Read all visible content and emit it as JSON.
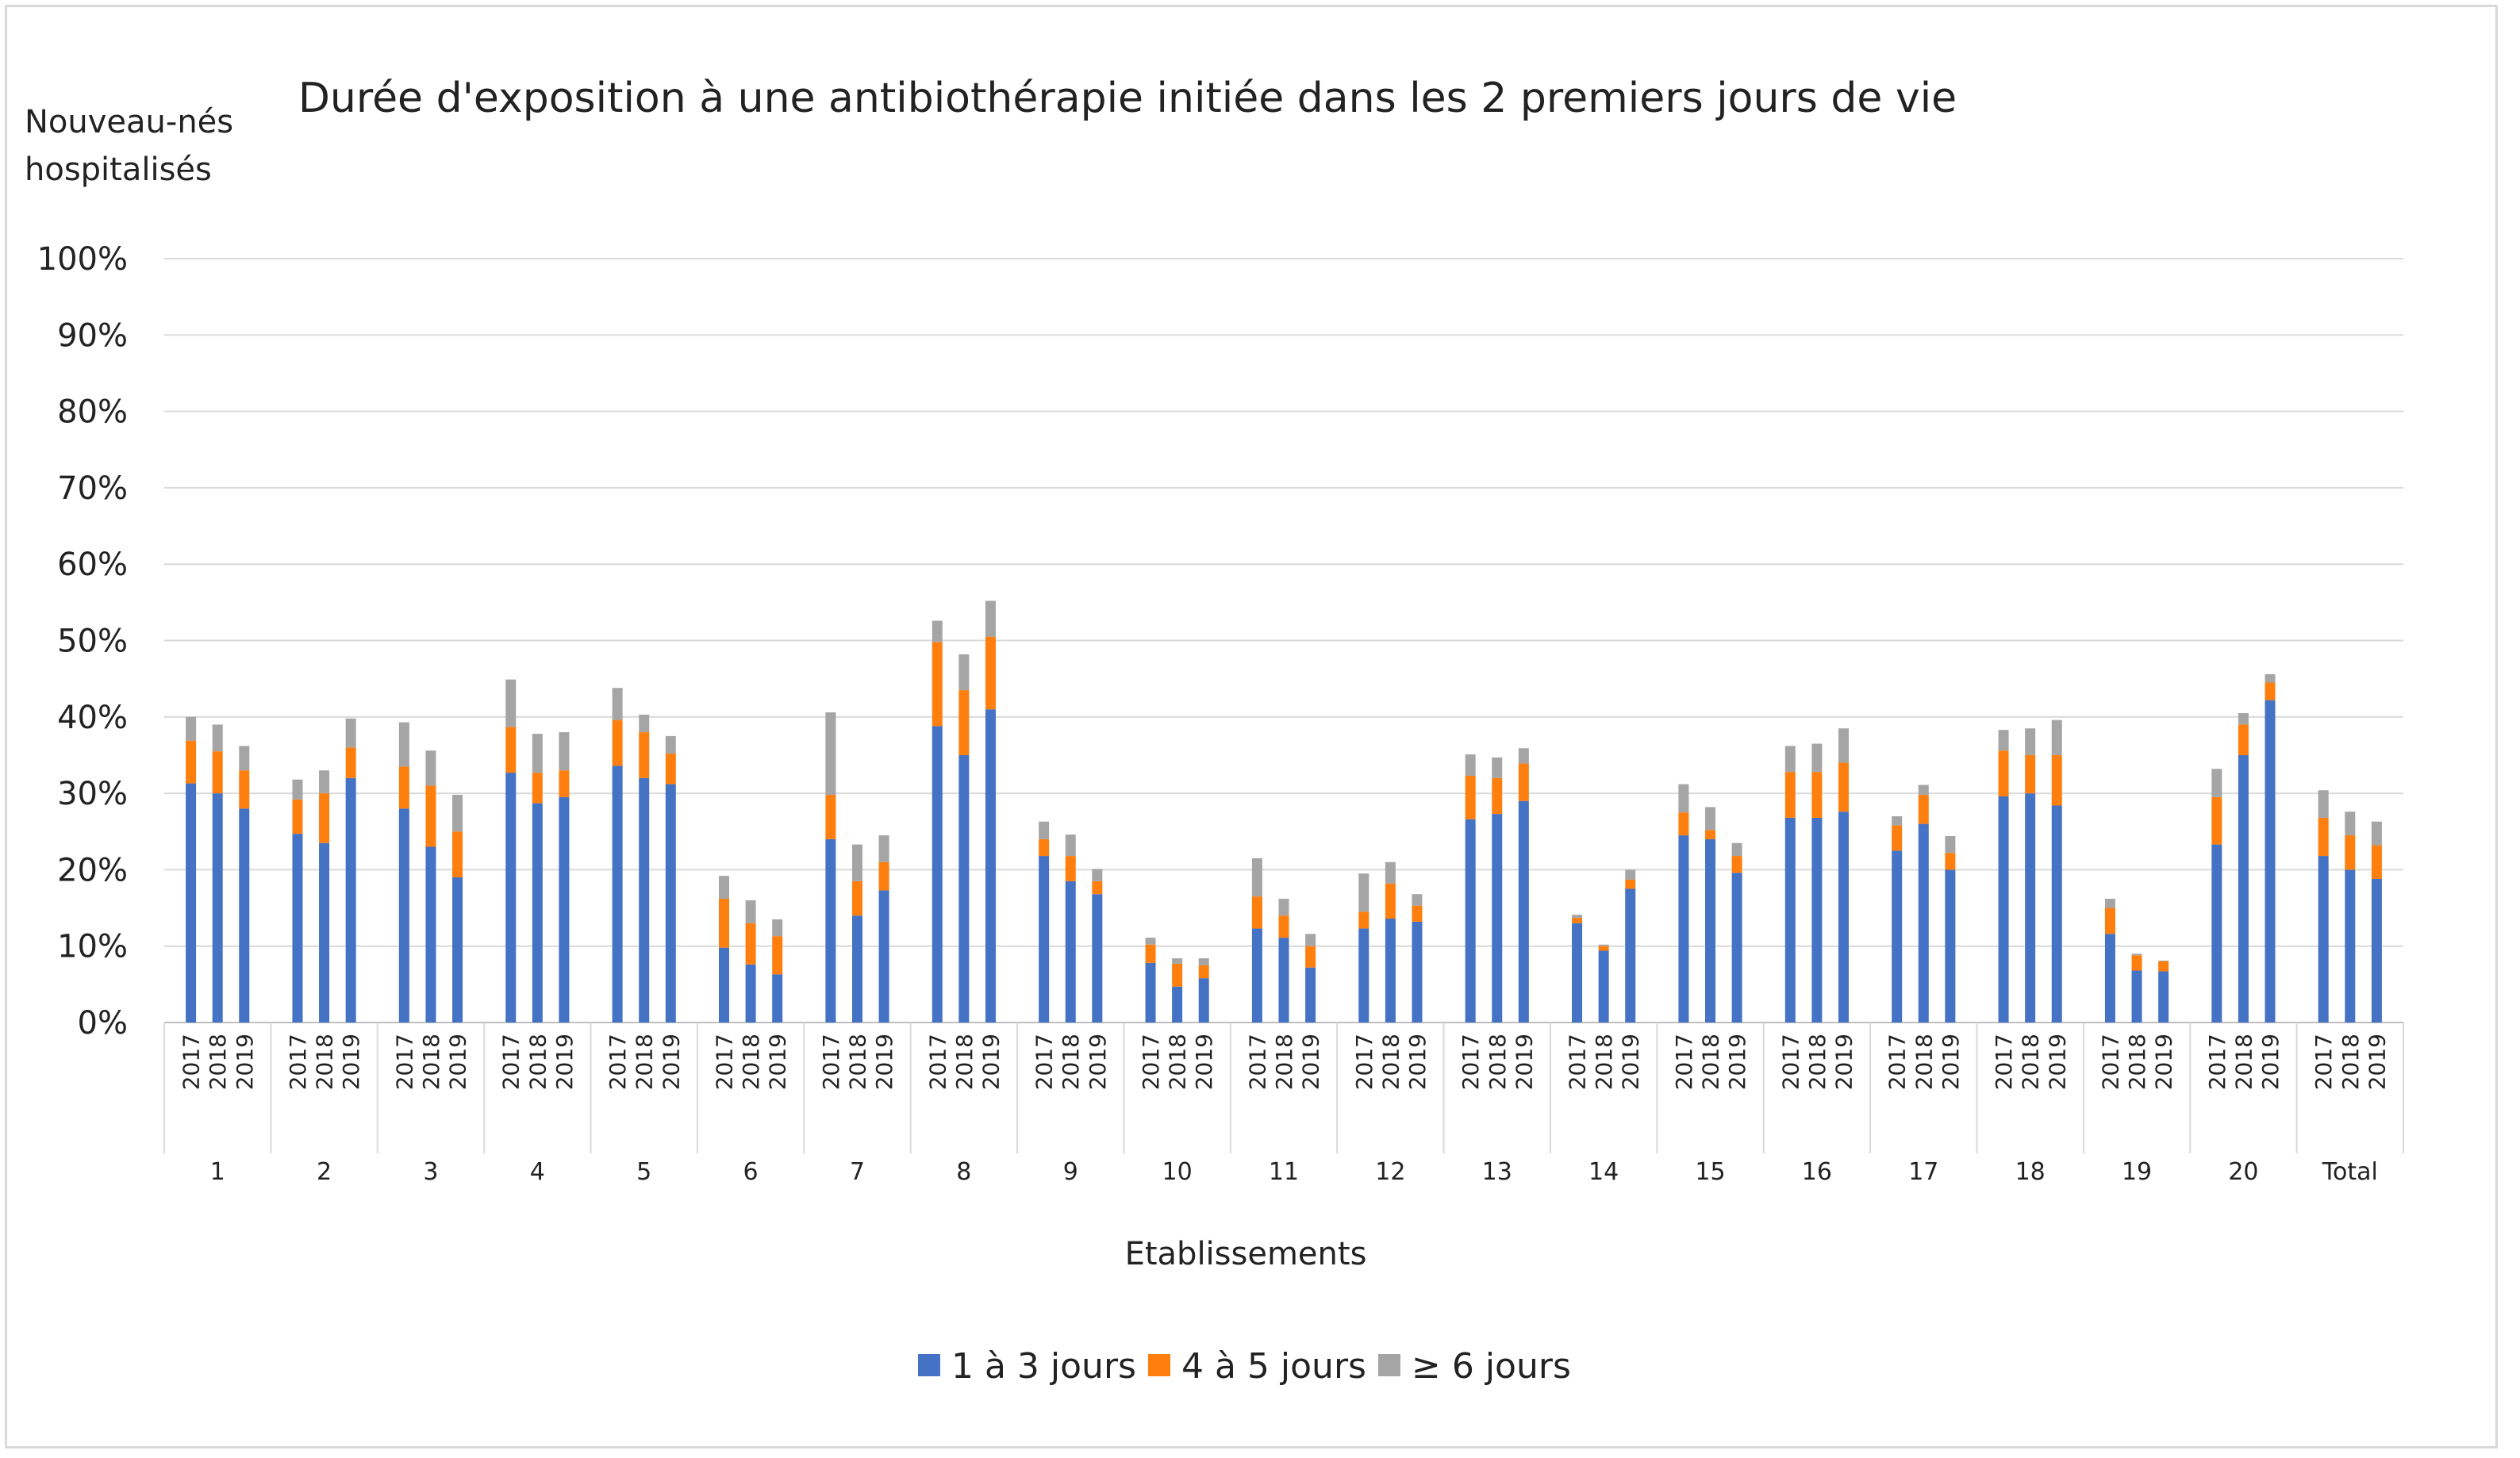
{
  "chart_data": {
    "type": "bar",
    "stacked": true,
    "title": "Durée d'exposition à une antibiothérapie initiée dans les 2 premiers jours de vie",
    "ylabel_lines": [
      "Nouveau-nés",
      "hospitalisés"
    ],
    "xlabel": "Etablissements",
    "ylim": [
      0,
      100
    ],
    "yticks": [
      "0%",
      "10%",
      "20%",
      "30%",
      "40%",
      "50%",
      "60%",
      "70%",
      "80%",
      "90%",
      "100%"
    ],
    "grid": true,
    "legend_position": "bottom",
    "years": [
      "2017",
      "2018",
      "2019"
    ],
    "groups": [
      "1",
      "2",
      "3",
      "4",
      "5",
      "6",
      "7",
      "8",
      "9",
      "10",
      "11",
      "12",
      "13",
      "14",
      "15",
      "16",
      "17",
      "18",
      "19",
      "20",
      "Total"
    ],
    "series": [
      {
        "name": "1 à 3 jours",
        "color": "#4472c4",
        "values": [
          [
            31.3,
            30.0,
            28.0
          ],
          [
            24.7,
            23.5,
            32.0
          ],
          [
            28.0,
            23.0,
            19.0
          ],
          [
            32.7,
            28.7,
            29.5
          ],
          [
            33.6,
            32.0,
            31.2
          ],
          [
            9.8,
            7.6,
            6.3
          ],
          [
            24.0,
            14.0,
            17.3
          ],
          [
            38.8,
            35.0,
            41.0
          ],
          [
            21.8,
            18.5,
            16.8
          ],
          [
            7.8,
            4.7,
            5.8
          ],
          [
            12.3,
            11.1,
            7.2
          ],
          [
            12.3,
            13.6,
            13.2
          ],
          [
            26.6,
            27.3,
            29.0
          ],
          [
            13.0,
            9.4,
            17.5
          ],
          [
            24.5,
            24.0,
            19.6
          ],
          [
            26.8,
            26.8,
            27.6
          ],
          [
            22.5,
            26.0,
            20.0
          ],
          [
            29.6,
            30.0,
            28.4
          ],
          [
            11.6,
            6.8,
            6.7
          ],
          [
            23.3,
            35.0,
            42.2
          ],
          [
            21.8,
            20.0,
            18.8
          ]
        ]
      },
      {
        "name": "4 à 5 jours",
        "color": "#ff7f0e",
        "values": [
          [
            5.6,
            5.5,
            5.0
          ],
          [
            4.5,
            6.5,
            4.0
          ],
          [
            5.5,
            8.0,
            6.0
          ],
          [
            6.0,
            4.0,
            3.5
          ],
          [
            6.0,
            6.0,
            4.0
          ],
          [
            6.4,
            5.4,
            5.0
          ],
          [
            5.8,
            4.5,
            3.7
          ],
          [
            11.0,
            8.5,
            9.5
          ],
          [
            2.2,
            3.3,
            1.7
          ],
          [
            2.4,
            3.0,
            1.7
          ],
          [
            4.2,
            2.9,
            2.8
          ],
          [
            2.2,
            4.6,
            2.1
          ],
          [
            5.7,
            4.7,
            4.9
          ],
          [
            0.7,
            0.6,
            1.2
          ],
          [
            3.0,
            1.2,
            2.2
          ],
          [
            6.0,
            6.0,
            6.4
          ],
          [
            3.3,
            3.8,
            2.2
          ],
          [
            6.0,
            5.0,
            6.6
          ],
          [
            3.4,
            2.0,
            1.3
          ],
          [
            6.2,
            4.0,
            2.3
          ],
          [
            5.0,
            4.5,
            4.4
          ]
        ]
      },
      {
        "name": "≥ 6 jours",
        "color": "#a5a5a5",
        "values": [
          [
            3.1,
            3.5,
            3.2
          ],
          [
            2.6,
            3.0,
            3.8
          ],
          [
            5.8,
            4.6,
            4.8
          ],
          [
            6.2,
            5.1,
            5.0
          ],
          [
            4.2,
            2.3,
            2.3
          ],
          [
            3.0,
            3.0,
            2.2
          ],
          [
            10.8,
            4.8,
            3.5
          ],
          [
            2.8,
            4.7,
            4.7
          ],
          [
            2.3,
            2.8,
            1.6
          ],
          [
            0.9,
            0.7,
            0.9
          ],
          [
            5.0,
            2.2,
            1.6
          ],
          [
            5.0,
            2.8,
            1.5
          ],
          [
            2.8,
            2.7,
            2.0
          ],
          [
            0.4,
            0.2,
            1.3
          ],
          [
            3.7,
            3.0,
            1.7
          ],
          [
            3.4,
            3.7,
            4.5
          ],
          [
            1.2,
            1.3,
            2.2
          ],
          [
            2.7,
            3.5,
            4.6
          ],
          [
            1.2,
            0.2,
            0.1
          ],
          [
            3.7,
            1.5,
            1.1
          ],
          [
            3.6,
            3.1,
            3.1
          ]
        ]
      }
    ]
  }
}
